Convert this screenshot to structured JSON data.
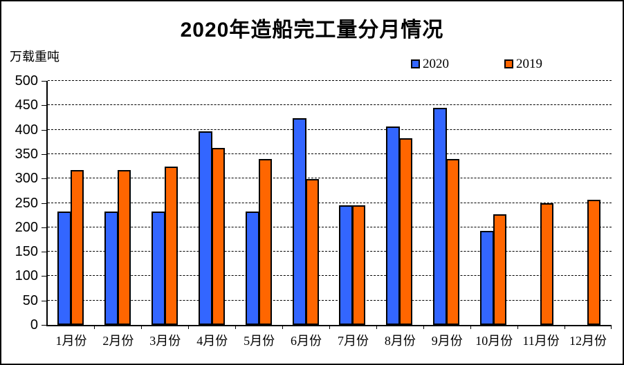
{
  "title": "2020年造船完工量分月情况",
  "legend": {
    "items": [
      {
        "label": "2020",
        "color": "#3366ff"
      },
      {
        "label": "2019",
        "color": "#ff6600"
      }
    ]
  },
  "chart_data": {
    "type": "bar",
    "title": "2020年造船完工量分月情况",
    "xlabel": "",
    "ylabel": "万载重吨",
    "categories": [
      "1月份",
      "2月份",
      "3月份",
      "4月份",
      "5月份",
      "6月份",
      "7月份",
      "8月份",
      "9月份",
      "10月份",
      "11月份",
      "12月份"
    ],
    "series": [
      {
        "name": "2020",
        "color": "#3366ff",
        "values": [
          233,
          233,
          233,
          396,
          233,
          424,
          245,
          406,
          445,
          193,
          null,
          null
        ]
      },
      {
        "name": "2019",
        "color": "#ff6600",
        "values": [
          317,
          317,
          325,
          362,
          340,
          299,
          245,
          383,
          340,
          226,
          250,
          257
        ]
      }
    ],
    "ylim": [
      0,
      500
    ],
    "ytick_step": 50,
    "yticks": [
      0,
      50,
      100,
      150,
      200,
      250,
      300,
      350,
      400,
      450,
      500
    ],
    "grid": "horizontal-dashed",
    "legend_position": "top-right",
    "bar_border_color": "#000000",
    "background": "#ffffff"
  }
}
